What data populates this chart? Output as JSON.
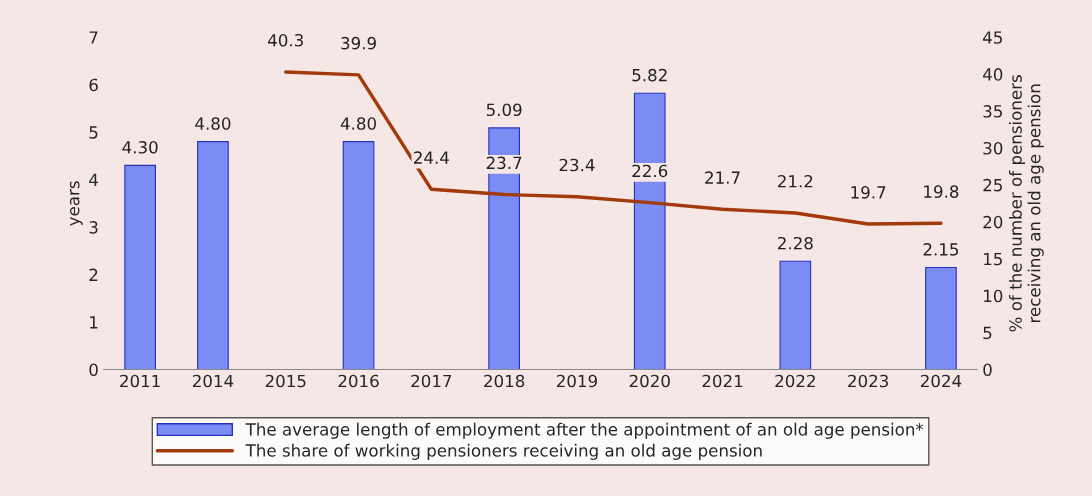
{
  "chart_data": {
    "type": "bar",
    "categories": [
      "2011",
      "2014",
      "2015",
      "2016",
      "2017",
      "2018",
      "2019",
      "2020",
      "2021",
      "2022",
      "2023",
      "2024"
    ],
    "series": [
      {
        "name": "The average length of employment after the appointment of an old age pension*",
        "color": "#7b8cf5",
        "values": [
          4.3,
          4.8,
          null,
          4.8,
          null,
          5.09,
          null,
          5.82,
          null,
          2.28,
          null,
          2.15
        ],
        "value_labels": [
          "4.30",
          "4.80",
          null,
          "4.80",
          null,
          "5.09",
          null,
          "5.82",
          null,
          "2.28",
          null,
          "2.15"
        ]
      },
      {
        "name": "The share of working pensioners receiving an old age pension",
        "type": "line",
        "axis": "y2",
        "color": "#a33a0c",
        "values": [
          null,
          null,
          40.3,
          39.9,
          24.4,
          23.7,
          23.4,
          22.6,
          21.7,
          21.2,
          19.7,
          19.8
        ],
        "value_labels": [
          null,
          null,
          "40.3",
          "39.9",
          "24.4",
          "23.7",
          "23.4",
          "22.6",
          "21.7",
          "21.2",
          "19.7",
          "19.8"
        ]
      }
    ],
    "ylabel": "years",
    "y2label": "% of the number of pensioners\nreceiving an old age pension",
    "ylim": [
      0,
      7
    ],
    "yticks": [
      0,
      1,
      2,
      3,
      4,
      5,
      6,
      7
    ],
    "y2lim": [
      0,
      45
    ],
    "y2ticks": [
      0,
      5,
      10,
      15,
      20,
      25,
      30,
      35,
      40,
      45
    ],
    "grid": false,
    "legend": "bottom",
    "marker": "none",
    "line_style": "solid"
  }
}
